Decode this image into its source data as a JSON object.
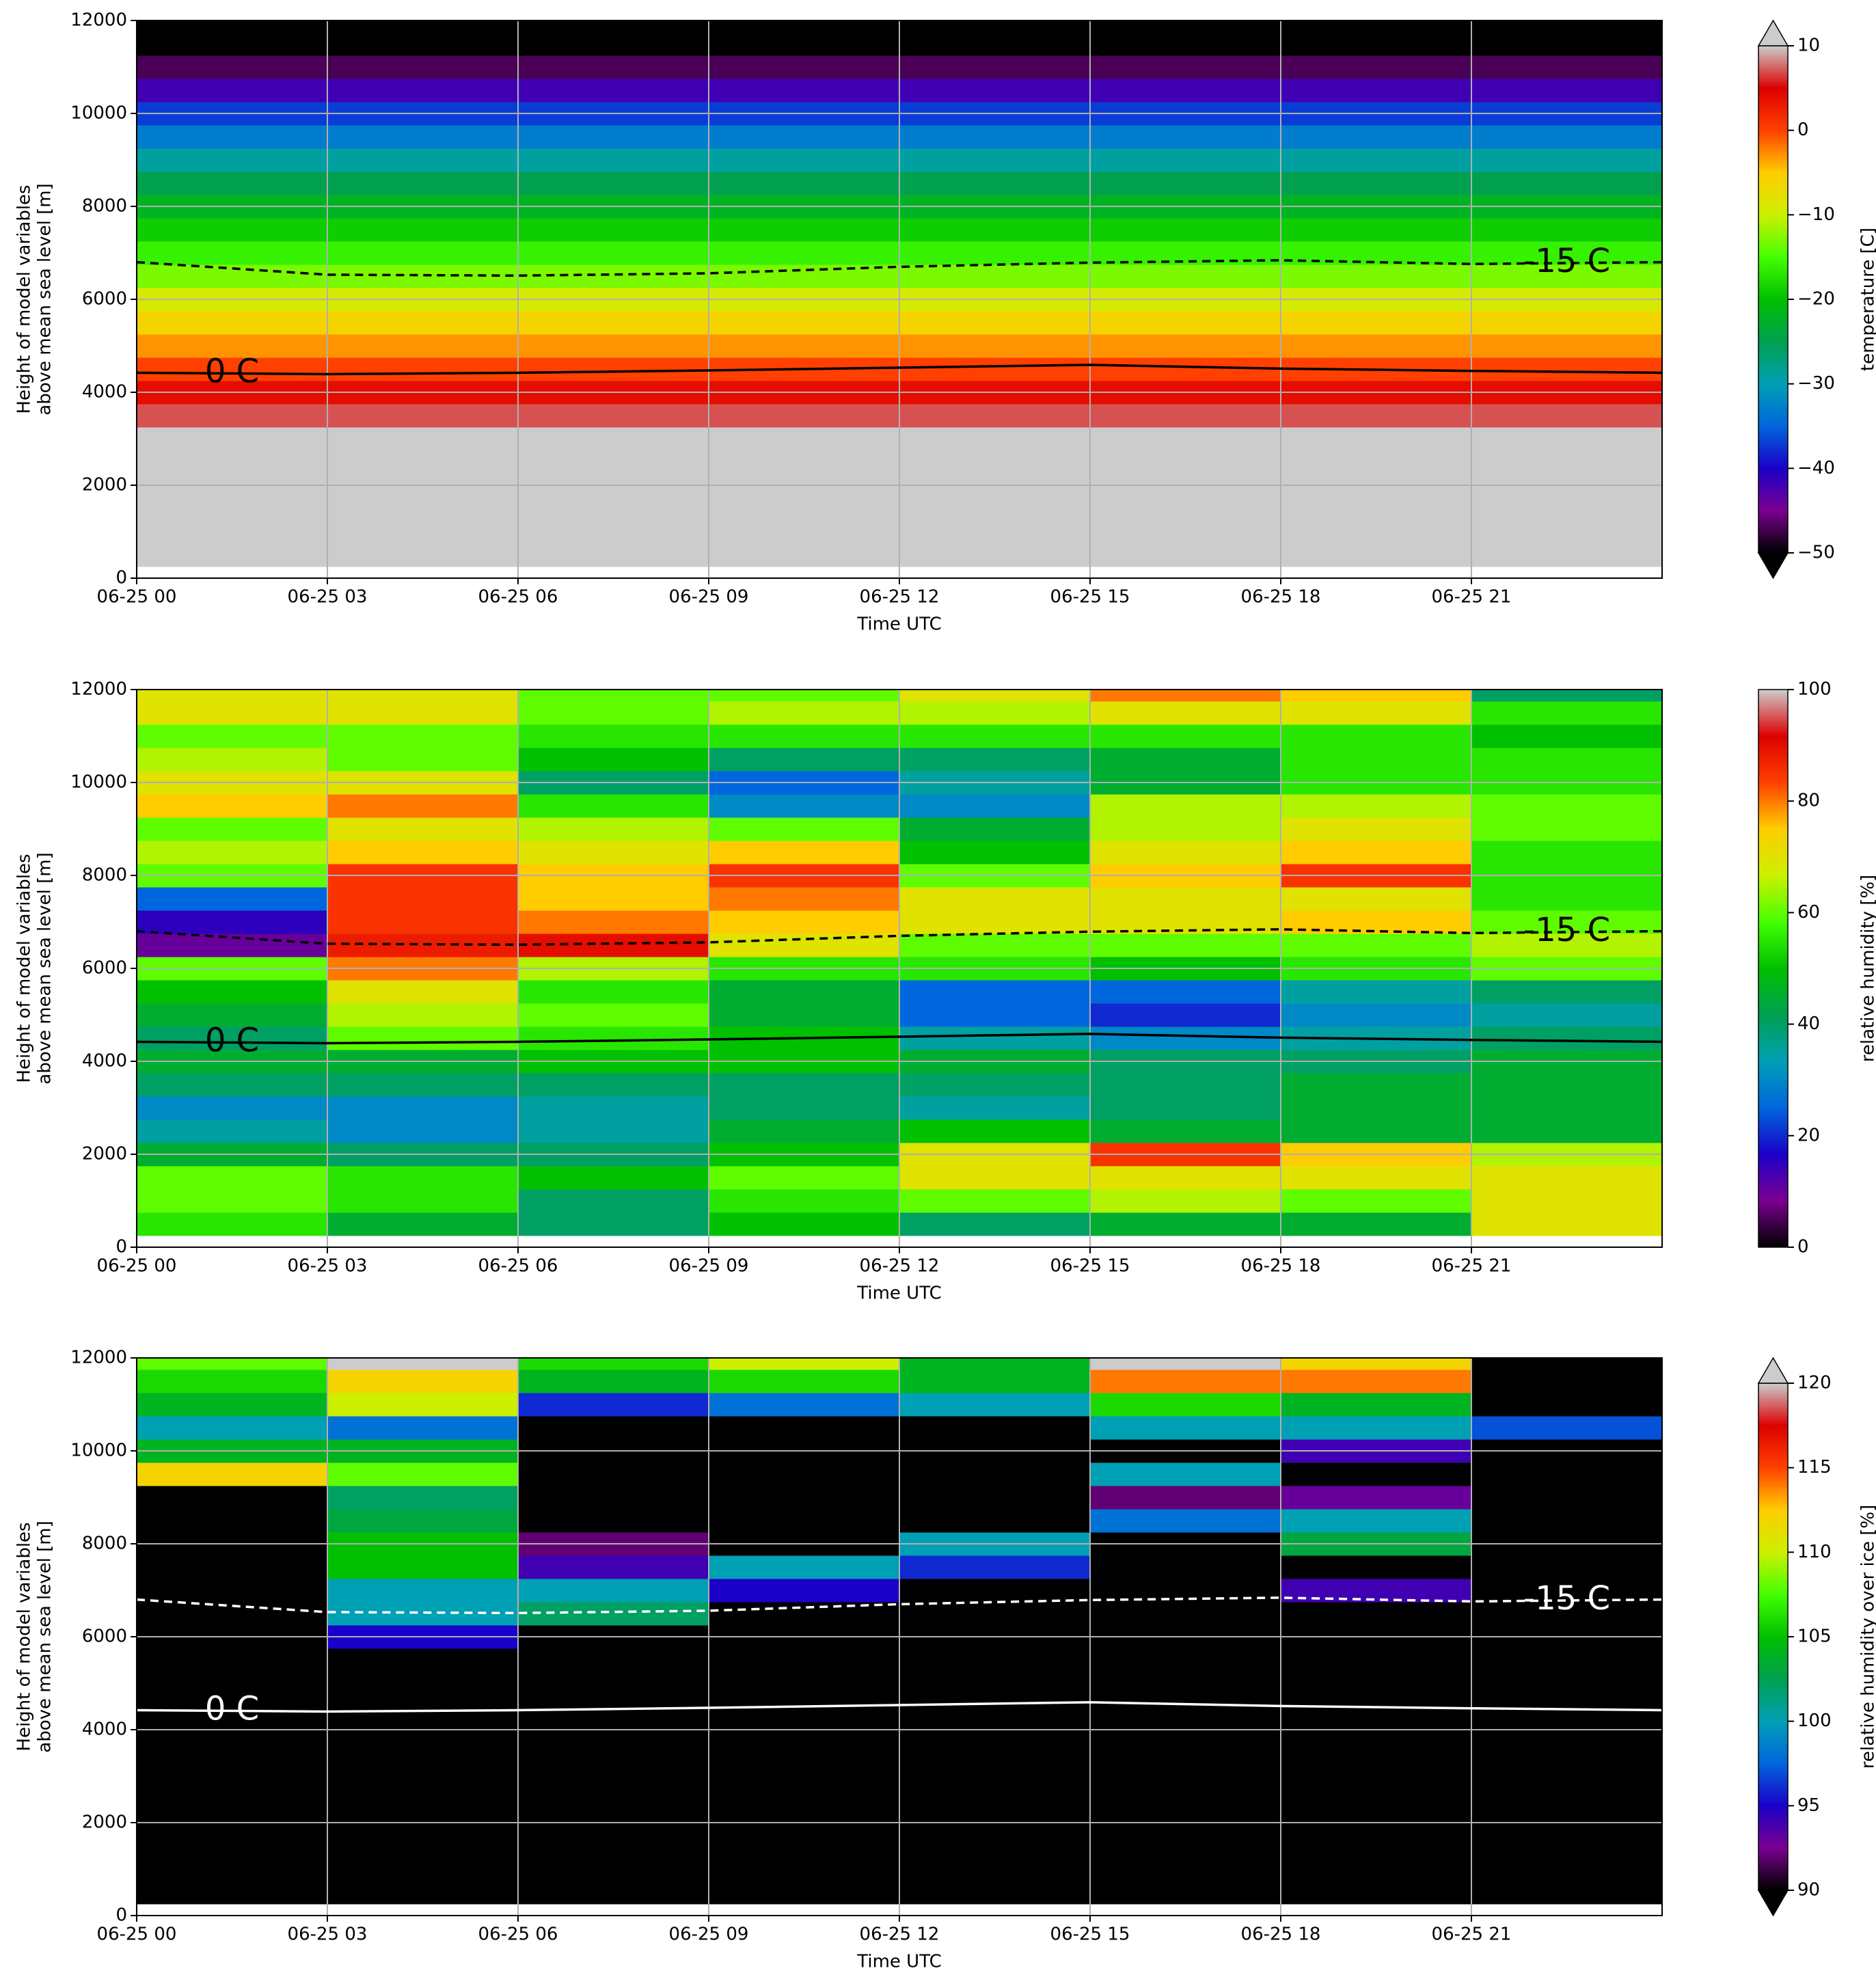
{
  "chart_data": [
    {
      "type": "heatmap",
      "ylabel": [
        "Height of model variables",
        "above mean sea level [m]"
      ],
      "xlabel": "Time UTC",
      "xlim": [
        0,
        24
      ],
      "ylim": [
        0,
        12000
      ],
      "xticks": [
        {
          "value": 0,
          "label": "06-25 00"
        },
        {
          "value": 3,
          "label": "06-25 03"
        },
        {
          "value": 6,
          "label": "06-25 06"
        },
        {
          "value": 9,
          "label": "06-25 09"
        },
        {
          "value": 12,
          "label": "06-25 12"
        },
        {
          "value": 15,
          "label": "06-25 15"
        },
        {
          "value": 18,
          "label": "06-25 18"
        },
        {
          "value": 21,
          "label": "06-25 21"
        }
      ],
      "yticks": [
        0,
        2000,
        4000,
        6000,
        8000,
        10000,
        12000
      ],
      "grid": true,
      "x_edges": [
        0,
        3,
        6,
        9,
        12,
        15,
        18,
        21,
        24
      ],
      "y_edges": [
        250,
        750,
        1250,
        1750,
        2250,
        2750,
        3250,
        3750,
        4250,
        4750,
        5250,
        5750,
        6250,
        6750,
        7250,
        7750,
        8250,
        8750,
        9250,
        9750,
        10250,
        10750,
        11250,
        11750,
        12000
      ],
      "z": [
        [
          14,
          14,
          14,
          14,
          14,
          14,
          14,
          14
        ],
        [
          14,
          14,
          14,
          14,
          14,
          14,
          14,
          14
        ],
        [
          12,
          12,
          12,
          12,
          12,
          12,
          12,
          12
        ],
        [
          12,
          12,
          12,
          12,
          12,
          12,
          12,
          12
        ],
        [
          11,
          11,
          11,
          11,
          11,
          11,
          11,
          11
        ],
        [
          11,
          11,
          11,
          11,
          11,
          11,
          11,
          11
        ],
        [
          7,
          7,
          7,
          7,
          7,
          7,
          7,
          7
        ],
        [
          4,
          4,
          4,
          4,
          4,
          4,
          4,
          4
        ],
        [
          0,
          0,
          0,
          0,
          0,
          0,
          0,
          0
        ],
        [
          -3,
          -3,
          -3,
          -3,
          -3,
          -3,
          -3,
          -3
        ],
        [
          -6,
          -6,
          -6,
          -6,
          -6,
          -6,
          -6,
          -6
        ],
        [
          -9,
          -9,
          -9,
          -9,
          -9,
          -9,
          -9,
          -9
        ],
        [
          -13,
          -13,
          -13,
          -13,
          -13,
          -13,
          -13,
          -13
        ],
        [
          -16,
          -16,
          -16,
          -16,
          -16,
          -16,
          -16,
          -16
        ],
        [
          -19,
          -19,
          -19,
          -19,
          -19,
          -19,
          -19,
          -19
        ],
        [
          -22,
          -22,
          -22,
          -22,
          -22,
          -22,
          -22,
          -22
        ],
        [
          -25,
          -25,
          -25,
          -25,
          -25,
          -25,
          -25,
          -25
        ],
        [
          -29,
          -29,
          -29,
          -29,
          -29,
          -29,
          -29,
          -29
        ],
        [
          -33,
          -33,
          -33,
          -33,
          -33,
          -33,
          -33,
          -33
        ],
        [
          -37,
          -37,
          -37,
          -37,
          -37,
          -37,
          -37,
          -37
        ],
        [
          -42,
          -42,
          -42,
          -42,
          -42,
          -42,
          -42,
          -42
        ],
        [
          -47,
          -47,
          -47,
          -47,
          -47,
          -47,
          -47,
          -47
        ],
        [
          -52,
          -52,
          -52,
          -52,
          -52,
          -52,
          -52,
          -52
        ],
        [
          -55,
          -55,
          -55,
          -55,
          -55,
          -55,
          -55,
          -55
        ]
      ],
      "contour_color": "#000000",
      "contours": [
        {
          "label": "0 C",
          "style": "solid",
          "x": [
            0,
            3,
            6,
            9,
            12,
            15,
            18,
            21,
            24
          ],
          "y": [
            4420,
            4390,
            4420,
            4470,
            4530,
            4590,
            4510,
            4460,
            4420
          ]
        },
        {
          "label": "-15 C",
          "style": "dashed",
          "x": [
            0,
            3,
            6,
            9,
            12,
            15,
            18,
            21,
            24
          ],
          "y": [
            6800,
            6530,
            6510,
            6560,
            6700,
            6790,
            6840,
            6760,
            6800
          ]
        }
      ],
      "colorbar": {
        "label": "temperature [C]",
        "lim": [
          -50,
          10
        ],
        "extend": "both",
        "ticks": [
          {
            "value": -50,
            "label": "−50"
          },
          {
            "value": -40,
            "label": "−40"
          },
          {
            "value": -30,
            "label": "−30"
          },
          {
            "value": -20,
            "label": "−20"
          },
          {
            "value": -10,
            "label": "−10"
          },
          0,
          10
        ],
        "cmap": [
          "#000000",
          "#7a0090",
          "#1a00c8",
          "#0066dd",
          "#00a0b4",
          "#00a050",
          "#00c000",
          "#44ff00",
          "#ccf000",
          "#ffcc00",
          "#ff4000",
          "#dd0000",
          "#cccccc"
        ],
        "under_color": "#000000",
        "over_color": "#cccccc"
      }
    },
    {
      "type": "heatmap",
      "ylabel": [
        "Height of model variables",
        "above mean sea level [m]"
      ],
      "xlabel": "Time UTC",
      "xlim": [
        0,
        24
      ],
      "ylim": [
        0,
        12000
      ],
      "xticks": [
        {
          "value": 0,
          "label": "06-25 00"
        },
        {
          "value": 3,
          "label": "06-25 03"
        },
        {
          "value": 6,
          "label": "06-25 06"
        },
        {
          "value": 9,
          "label": "06-25 09"
        },
        {
          "value": 12,
          "label": "06-25 12"
        },
        {
          "value": 15,
          "label": "06-25 15"
        },
        {
          "value": 18,
          "label": "06-25 18"
        },
        {
          "value": 21,
          "label": "06-25 21"
        }
      ],
      "yticks": [
        0,
        2000,
        4000,
        6000,
        8000,
        10000,
        12000
      ],
      "grid": true,
      "x_edges": [
        0,
        3,
        6,
        9,
        12,
        15,
        18,
        21,
        24
      ],
      "y_edges": [
        250,
        750,
        1250,
        1750,
        2250,
        2750,
        3250,
        3750,
        4250,
        4750,
        5250,
        5750,
        6250,
        6750,
        7250,
        7750,
        8250,
        8750,
        9250,
        9750,
        10250,
        10750,
        11250,
        11750,
        12000
      ],
      "z": [
        [
          55,
          45,
          40,
          50,
          40,
          45,
          45,
          70
        ],
        [
          60,
          55,
          40,
          55,
          60,
          65,
          60,
          70
        ],
        [
          60,
          55,
          50,
          60,
          70,
          70,
          70,
          70
        ],
        [
          45,
          40,
          40,
          50,
          70,
          85,
          75,
          65
        ],
        [
          35,
          30,
          35,
          45,
          50,
          45,
          45,
          45
        ],
        [
          30,
          30,
          35,
          40,
          35,
          40,
          45,
          45
        ],
        [
          40,
          40,
          40,
          40,
          40,
          40,
          45,
          45
        ],
        [
          45,
          45,
          50,
          50,
          45,
          40,
          40,
          45
        ],
        [
          40,
          60,
          55,
          50,
          35,
          30,
          35,
          40
        ],
        [
          45,
          65,
          60,
          45,
          25,
          20,
          30,
          35
        ],
        [
          50,
          70,
          55,
          45,
          25,
          25,
          35,
          40
        ],
        [
          60,
          80,
          65,
          55,
          55,
          50,
          55,
          60
        ],
        [
          10,
          88,
          90,
          70,
          60,
          60,
          60,
          65
        ],
        [
          15,
          85,
          80,
          75,
          70,
          70,
          75,
          60
        ],
        [
          25,
          85,
          75,
          80,
          70,
          70,
          70,
          55
        ],
        [
          60,
          85,
          75,
          85,
          60,
          75,
          85,
          55
        ],
        [
          65,
          75,
          70,
          75,
          50,
          70,
          75,
          55
        ],
        [
          60,
          70,
          65,
          60,
          45,
          65,
          70,
          60
        ],
        [
          75,
          80,
          55,
          30,
          30,
          65,
          65,
          60
        ],
        [
          70,
          70,
          40,
          25,
          35,
          45,
          55,
          55
        ],
        [
          65,
          60,
          50,
          40,
          40,
          45,
          55,
          55
        ],
        [
          60,
          60,
          55,
          55,
          55,
          55,
          55,
          50
        ],
        [
          70,
          70,
          60,
          65,
          65,
          70,
          70,
          55
        ],
        [
          70,
          70,
          60,
          60,
          70,
          80,
          75,
          40
        ]
      ],
      "contour_color": "#000000",
      "contours": [
        {
          "label": "0 C",
          "style": "solid",
          "x": [
            0,
            3,
            6,
            9,
            12,
            15,
            18,
            21,
            24
          ],
          "y": [
            4420,
            4390,
            4420,
            4470,
            4530,
            4590,
            4510,
            4460,
            4420
          ]
        },
        {
          "label": "-15 C",
          "style": "dashed",
          "x": [
            0,
            3,
            6,
            9,
            12,
            15,
            18,
            21,
            24
          ],
          "y": [
            6800,
            6530,
            6510,
            6560,
            6700,
            6790,
            6840,
            6760,
            6800
          ]
        }
      ],
      "colorbar": {
        "label": "relative humidity [%]",
        "lim": [
          0,
          100
        ],
        "extend": "neither",
        "ticks": [
          0,
          20,
          40,
          60,
          80,
          100
        ],
        "cmap": [
          "#000000",
          "#7a0090",
          "#1a00c8",
          "#0066dd",
          "#00a0b4",
          "#00a050",
          "#00c000",
          "#44ff00",
          "#ccf000",
          "#ffcc00",
          "#ff4000",
          "#dd0000",
          "#cccccc"
        ],
        "under_color": "#000000",
        "over_color": "#cccccc"
      }
    },
    {
      "type": "heatmap",
      "ylabel": [
        "Height of model variables",
        "above mean sea level [m]"
      ],
      "xlabel": "Time UTC",
      "xlim": [
        0,
        24
      ],
      "ylim": [
        0,
        12000
      ],
      "xticks": [
        {
          "value": 0,
          "label": "06-25 00"
        },
        {
          "value": 3,
          "label": "06-25 03"
        },
        {
          "value": 6,
          "label": "06-25 06"
        },
        {
          "value": 9,
          "label": "06-25 09"
        },
        {
          "value": 12,
          "label": "06-25 12"
        },
        {
          "value": 15,
          "label": "06-25 15"
        },
        {
          "value": 18,
          "label": "06-25 18"
        },
        {
          "value": 21,
          "label": "06-25 21"
        }
      ],
      "yticks": [
        0,
        2000,
        4000,
        6000,
        8000,
        10000,
        12000
      ],
      "grid": true,
      "x_edges": [
        0,
        3,
        6,
        9,
        12,
        15,
        18,
        21,
        24
      ],
      "y_edges": [
        250,
        750,
        1250,
        1750,
        2250,
        2750,
        3250,
        3750,
        4250,
        4750,
        5250,
        5750,
        6250,
        6750,
        7250,
        7750,
        8250,
        8750,
        9250,
        9750,
        10250,
        10750,
        11250,
        11750,
        12000
      ],
      "z": [
        [
          80,
          80,
          80,
          80,
          80,
          80,
          80,
          80
        ],
        [
          80,
          80,
          80,
          80,
          80,
          80,
          80,
          80
        ],
        [
          80,
          80,
          80,
          80,
          80,
          80,
          80,
          80
        ],
        [
          80,
          80,
          80,
          80,
          80,
          80,
          80,
          80
        ],
        [
          80,
          80,
          80,
          80,
          80,
          80,
          80,
          80
        ],
        [
          80,
          80,
          80,
          80,
          80,
          80,
          80,
          80
        ],
        [
          80,
          80,
          80,
          80,
          80,
          80,
          80,
          80
        ],
        [
          80,
          80,
          80,
          80,
          80,
          80,
          80,
          80
        ],
        [
          80,
          80,
          80,
          80,
          80,
          80,
          80,
          80
        ],
        [
          80,
          80,
          80,
          80,
          80,
          80,
          80,
          80
        ],
        [
          80,
          80,
          80,
          80,
          80,
          80,
          80,
          80
        ],
        [
          80,
          95,
          90,
          80,
          80,
          80,
          80,
          80
        ],
        [
          80,
          100,
          102,
          80,
          80,
          80,
          80,
          80
        ],
        [
          80,
          100,
          100,
          95,
          80,
          80,
          94,
          80
        ],
        [
          80,
          105,
          94,
          100,
          96,
          80,
          80,
          80
        ],
        [
          80,
          105,
          92,
          80,
          100,
          80,
          103,
          80
        ],
        [
          80,
          103,
          80,
          80,
          80,
          98,
          100,
          80
        ],
        [
          80,
          102,
          80,
          80,
          80,
          92,
          93,
          80
        ],
        [
          112,
          108,
          80,
          80,
          80,
          100,
          80,
          80
        ],
        [
          104,
          104,
          80,
          80,
          80,
          80,
          94,
          80
        ],
        [
          100,
          98,
          80,
          80,
          80,
          100,
          100,
          97
        ],
        [
          104,
          110,
          96,
          98,
          100,
          106,
          104,
          80
        ],
        [
          106,
          112,
          104,
          106,
          104,
          114,
          114,
          80
        ],
        [
          108,
          121,
          106,
          110,
          104,
          121,
          112,
          80
        ]
      ],
      "contour_color": "#ffffff",
      "contours": [
        {
          "label": "0 C",
          "style": "solid",
          "x": [
            0,
            3,
            6,
            9,
            12,
            15,
            18,
            21,
            24
          ],
          "y": [
            4420,
            4390,
            4420,
            4470,
            4530,
            4590,
            4510,
            4460,
            4420
          ]
        },
        {
          "label": "-15 C",
          "style": "dashed",
          "x": [
            0,
            3,
            6,
            9,
            12,
            15,
            18,
            21,
            24
          ],
          "y": [
            6800,
            6530,
            6510,
            6560,
            6700,
            6790,
            6840,
            6760,
            6800
          ]
        }
      ],
      "colorbar": {
        "label": "relative humidity over ice [%]",
        "lim": [
          90,
          120
        ],
        "extend": "both",
        "ticks": [
          90,
          95,
          100,
          105,
          110,
          115,
          120
        ],
        "cmap": [
          "#000000",
          "#7a0090",
          "#1a00c8",
          "#0066dd",
          "#00a0b4",
          "#00a050",
          "#00c000",
          "#44ff00",
          "#ccf000",
          "#ffcc00",
          "#ff4000",
          "#dd0000",
          "#cccccc"
        ],
        "under_color": "#000000",
        "over_color": "#cccccc"
      }
    }
  ]
}
